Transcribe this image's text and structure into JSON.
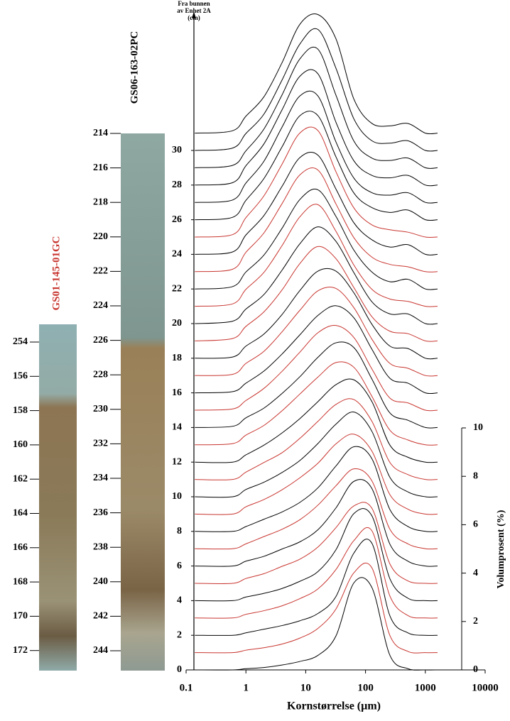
{
  "chart_data": {
    "type": "line",
    "y_label": [
      "Fra bunnen",
      "av Enhet 2A",
      "(cm)"
    ],
    "x_label": "Kornstørrelse (µm)",
    "y2_label": "Volumprosent (%)",
    "x": [
      0.14,
      0.6,
      1,
      2,
      4,
      8,
      16,
      32,
      64,
      128,
      256,
      512,
      1000,
      1600
    ],
    "xlim": [
      0.1,
      10000
    ],
    "xticks": [
      0.1,
      1,
      10,
      100,
      1000,
      10000
    ],
    "xscale": "log",
    "ylim": [
      0,
      38
    ],
    "yticks": [
      0,
      2,
      4,
      6,
      8,
      10,
      12,
      14,
      16,
      18,
      20,
      22,
      24,
      26,
      28,
      30
    ],
    "y2lim": [
      0,
      10
    ],
    "y2ticks": [
      0,
      2,
      4,
      6,
      8,
      10
    ],
    "series": [
      {
        "offset": 0,
        "color": "#000000",
        "axis": "y2",
        "values": [
          0,
          0,
          0.05,
          0.1,
          0.2,
          0.35,
          0.6,
          1.4,
          3.6,
          3.4,
          0.6,
          0.05,
          0,
          0
        ]
      },
      {
        "offset": 1,
        "color": "#c8352f",
        "axis": "y2",
        "values": [
          0,
          0,
          0.1,
          0.2,
          0.35,
          0.6,
          1.0,
          1.8,
          3.3,
          3.5,
          0.7,
          0.05,
          0,
          0
        ]
      },
      {
        "offset": 2,
        "color": "#000000",
        "axis": "y2",
        "values": [
          0,
          0,
          0.1,
          0.25,
          0.4,
          0.6,
          0.9,
          1.6,
          3.4,
          3.8,
          0.8,
          0.1,
          0,
          0
        ]
      },
      {
        "offset": 3,
        "color": "#c8352f",
        "axis": "y2",
        "values": [
          0,
          0,
          0.15,
          0.3,
          0.5,
          0.8,
          1.2,
          2.0,
          3.2,
          3.6,
          0.9,
          0.1,
          0,
          0
        ]
      },
      {
        "offset": 4,
        "color": "#000000",
        "axis": "y2",
        "values": [
          0,
          0,
          0.15,
          0.3,
          0.5,
          0.8,
          1.2,
          2.1,
          3.6,
          3.5,
          0.9,
          0.1,
          0,
          0
        ]
      },
      {
        "offset": 5,
        "color": "#c8352f",
        "axis": "y2",
        "values": [
          0,
          0,
          0.2,
          0.4,
          0.7,
          1.0,
          1.5,
          2.3,
          3.2,
          3.1,
          0.8,
          0.1,
          0,
          0
        ]
      },
      {
        "offset": 6,
        "color": "#000000",
        "axis": "y2",
        "values": [
          0,
          0,
          0.2,
          0.4,
          0.7,
          1.0,
          1.5,
          2.4,
          3.5,
          3.2,
          0.9,
          0.2,
          0,
          0
        ]
      },
      {
        "offset": 7,
        "color": "#c8352f",
        "axis": "y2",
        "values": [
          0,
          0,
          0.2,
          0.5,
          0.8,
          1.2,
          1.8,
          2.6,
          3.3,
          2.8,
          0.8,
          0.2,
          0,
          0
        ]
      },
      {
        "offset": 8,
        "color": "#000000",
        "axis": "y2",
        "values": [
          0,
          0,
          0.2,
          0.5,
          0.8,
          1.2,
          1.8,
          2.7,
          3.5,
          3.0,
          0.9,
          0.2,
          0,
          0
        ]
      },
      {
        "offset": 9,
        "color": "#c8352f",
        "axis": "y2",
        "values": [
          0,
          0,
          0.3,
          0.6,
          1.0,
          1.5,
          2.1,
          2.9,
          3.3,
          2.6,
          0.8,
          0.2,
          0,
          0
        ]
      },
      {
        "offset": 10,
        "color": "#000000",
        "axis": "y2",
        "values": [
          0,
          0,
          0.3,
          0.6,
          1.0,
          1.5,
          2.2,
          3.0,
          3.5,
          2.7,
          0.8,
          0.2,
          0,
          0
        ]
      },
      {
        "offset": 11,
        "color": "#c8352f",
        "axis": "y2",
        "values": [
          0,
          0,
          0.3,
          0.7,
          1.1,
          1.7,
          2.4,
          3.1,
          3.3,
          2.4,
          0.7,
          0.2,
          0,
          0
        ]
      },
      {
        "offset": 12,
        "color": "#000000",
        "axis": "y2",
        "values": [
          0,
          0,
          0.3,
          0.7,
          1.2,
          1.8,
          2.5,
          3.2,
          3.4,
          2.5,
          0.7,
          0.2,
          0,
          0
        ]
      },
      {
        "offset": 13,
        "color": "#c8352f",
        "axis": "y2",
        "values": [
          0,
          0.05,
          0.4,
          0.8,
          1.4,
          2.1,
          2.8,
          3.4,
          3.2,
          2.0,
          0.6,
          0.2,
          0,
          0
        ]
      },
      {
        "offset": 14,
        "color": "#000000",
        "axis": "y2",
        "values": [
          0,
          0.05,
          0.4,
          0.8,
          1.4,
          2.1,
          2.9,
          3.5,
          3.3,
          2.0,
          0.6,
          0.3,
          0,
          0
        ]
      },
      {
        "offset": 15,
        "color": "#c8352f",
        "axis": "y2",
        "values": [
          0,
          0.05,
          0.4,
          0.9,
          1.6,
          2.4,
          3.2,
          3.5,
          3.0,
          1.7,
          0.5,
          0.3,
          0,
          0
        ]
      },
      {
        "offset": 16,
        "color": "#000000",
        "axis": "y2",
        "values": [
          0,
          0.05,
          0.4,
          0.9,
          1.6,
          2.4,
          3.2,
          3.6,
          3.1,
          1.8,
          0.6,
          0.4,
          0,
          0
        ]
      },
      {
        "offset": 17,
        "color": "#c8352f",
        "axis": "y2",
        "values": [
          0,
          0.05,
          0.5,
          1.0,
          1.8,
          2.7,
          3.5,
          3.6,
          2.8,
          1.5,
          0.5,
          0.3,
          0,
          0
        ]
      },
      {
        "offset": 18,
        "color": "#000000",
        "axis": "y2",
        "values": [
          0,
          0.05,
          0.5,
          1.0,
          1.8,
          2.8,
          3.6,
          3.6,
          2.7,
          1.4,
          0.5,
          0.4,
          0,
          0
        ]
      },
      {
        "offset": 19,
        "color": "#c8352f",
        "axis": "y2",
        "values": [
          0,
          0.1,
          0.6,
          1.2,
          2.1,
          3.2,
          3.9,
          3.4,
          2.2,
          1.0,
          0.4,
          0.3,
          0,
          0
        ]
      },
      {
        "offset": 20,
        "color": "#000000",
        "axis": "y2",
        "values": [
          0,
          0.1,
          0.6,
          1.2,
          2.2,
          3.3,
          4.0,
          3.4,
          2.1,
          0.9,
          0.4,
          0.4,
          0,
          0
        ]
      },
      {
        "offset": 21,
        "color": "#c8352f",
        "axis": "y2",
        "values": [
          0,
          0.1,
          0.7,
          1.4,
          2.5,
          3.7,
          4.2,
          3.1,
          1.7,
          0.7,
          0.3,
          0.2,
          0,
          0
        ]
      },
      {
        "offset": 22,
        "color": "#000000",
        "axis": "y2",
        "values": [
          0,
          0.1,
          0.7,
          1.4,
          2.5,
          3.7,
          4.1,
          3.0,
          1.6,
          0.7,
          0.3,
          0.4,
          0,
          0
        ]
      },
      {
        "offset": 23,
        "color": "#c8352f",
        "axis": "y2",
        "values": [
          0,
          0.1,
          0.8,
          1.6,
          2.8,
          4.0,
          4.2,
          2.8,
          1.4,
          0.6,
          0.3,
          0.2,
          0,
          0
        ]
      },
      {
        "offset": 24,
        "color": "#000000",
        "axis": "y2",
        "values": [
          0,
          0.1,
          0.8,
          1.6,
          2.8,
          4.0,
          4.1,
          2.7,
          1.3,
          0.6,
          0.3,
          0.4,
          0,
          0
        ]
      },
      {
        "offset": 25,
        "color": "#c8352f",
        "axis": "y2",
        "values": [
          0,
          0.1,
          0.8,
          1.7,
          3.0,
          4.3,
          4.4,
          2.7,
          1.2,
          0.5,
          0.3,
          0.2,
          0,
          0
        ]
      },
      {
        "offset": 26,
        "color": "#000000",
        "axis": "y2",
        "values": [
          0,
          0.1,
          0.8,
          1.7,
          3.0,
          4.3,
          4.3,
          2.6,
          1.1,
          0.5,
          0.3,
          0.4,
          0,
          0
        ]
      },
      {
        "offset": 27,
        "color": "#000000",
        "axis": "y2",
        "values": [
          0,
          0.1,
          0.8,
          1.7,
          3.1,
          4.4,
          4.4,
          2.5,
          1.0,
          0.4,
          0.3,
          0.4,
          0,
          0
        ]
      },
      {
        "offset": 28,
        "color": "#000000",
        "axis": "y2",
        "values": [
          0,
          0.1,
          0.8,
          1.7,
          3.1,
          4.5,
          4.6,
          2.6,
          1.0,
          0.4,
          0.3,
          0.4,
          0,
          0
        ]
      },
      {
        "offset": 29,
        "color": "#000000",
        "axis": "y2",
        "values": [
          0,
          0.1,
          0.7,
          1.6,
          3.0,
          4.5,
          4.9,
          3.0,
          1.1,
          0.4,
          0.3,
          0.4,
          0,
          0
        ]
      },
      {
        "offset": 30,
        "color": "#000000",
        "axis": "y2",
        "values": [
          0,
          0.1,
          0.7,
          1.5,
          2.9,
          4.4,
          5.0,
          3.4,
          1.3,
          0.4,
          0.3,
          0.4,
          0,
          0
        ]
      },
      {
        "offset": 31,
        "color": "#000000",
        "axis": "y2",
        "values": [
          0,
          0.1,
          0.7,
          1.5,
          2.9,
          4.5,
          4.9,
          3.9,
          1.4,
          0.4,
          0.3,
          0.4,
          0,
          0
        ]
      }
    ]
  },
  "cores": [
    {
      "name": "GS01-145-01GC",
      "color": "#c8352f",
      "depths": [
        254,
        156,
        158,
        160,
        162,
        164,
        166,
        168,
        170,
        172
      ]
    },
    {
      "name": "GS06-163-02PC",
      "color": "#000000",
      "depths": [
        214,
        216,
        218,
        220,
        222,
        224,
        226,
        228,
        230,
        232,
        234,
        236,
        238,
        240,
        242,
        244
      ]
    }
  ]
}
